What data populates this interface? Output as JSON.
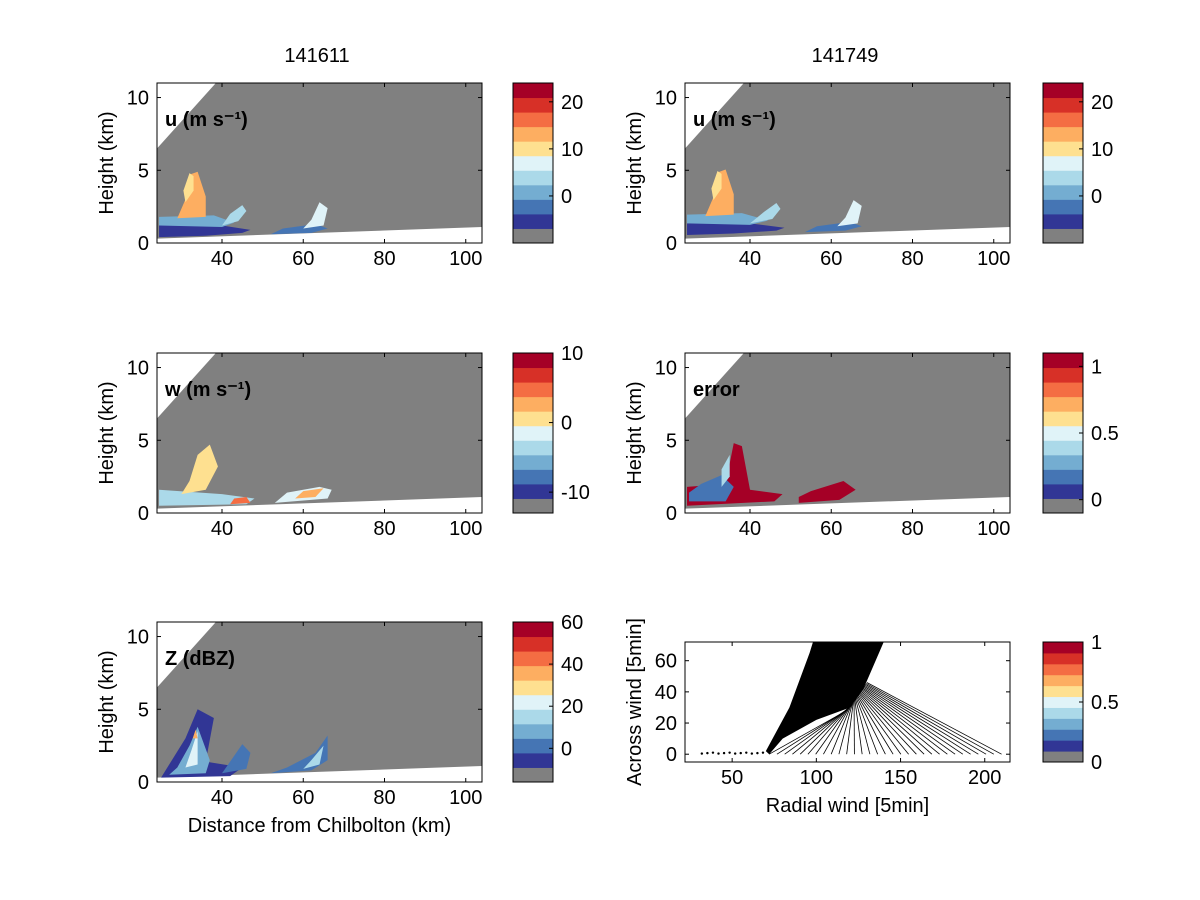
{
  "figure": {
    "column_titles": [
      "141611",
      "141749"
    ],
    "colors": {
      "ground_gray": "#808080",
      "palette": [
        "#808080",
        "#313695",
        "#4575b4",
        "#74add1",
        "#abd9e9",
        "#e0f3f8",
        "#fee090",
        "#fdae61",
        "#f46d43",
        "#d73027",
        "#a50026"
      ]
    }
  },
  "chart_data": [
    {
      "type": "heatmap",
      "title": "141611",
      "annotation": "u (m s⁻¹)",
      "xlabel": "",
      "ylabel": "Height (km)",
      "xlim": [
        24,
        104
      ],
      "ylim": [
        0,
        11
      ],
      "xticks": [
        "40",
        "60",
        "80",
        "100"
      ],
      "yticks": [
        "0",
        "5",
        "10"
      ],
      "colorbar": {
        "min": -10,
        "max": 24,
        "ticks": [
          "0",
          "10",
          "20"
        ]
      }
    },
    {
      "type": "heatmap",
      "title": "141749",
      "annotation": "u (m s⁻¹)",
      "xlabel": "",
      "ylabel": "Height (km)",
      "xlim": [
        24,
        104
      ],
      "ylim": [
        0,
        11
      ],
      "xticks": [
        "40",
        "60",
        "80",
        "100"
      ],
      "yticks": [
        "0",
        "5",
        "10"
      ],
      "colorbar": {
        "min": -10,
        "max": 24,
        "ticks": [
          "0",
          "10",
          "20"
        ]
      }
    },
    {
      "type": "heatmap",
      "title": "",
      "annotation": "w (m s⁻¹)",
      "xlabel": "",
      "ylabel": "Height (km)",
      "xlim": [
        24,
        104
      ],
      "ylim": [
        0,
        11
      ],
      "xticks": [
        "40",
        "60",
        "80",
        "100"
      ],
      "yticks": [
        "0",
        "5",
        "10"
      ],
      "colorbar": {
        "min": -13,
        "max": 10,
        "ticks": [
          "-10",
          "0",
          "10"
        ]
      }
    },
    {
      "type": "heatmap",
      "title": "",
      "annotation": "error",
      "xlabel": "",
      "ylabel": "Height (km)",
      "xlim": [
        24,
        104
      ],
      "ylim": [
        0,
        11
      ],
      "xticks": [
        "40",
        "60",
        "80",
        "100"
      ],
      "yticks": [
        "0",
        "5",
        "10"
      ],
      "colorbar": {
        "min": -0.1,
        "max": 1.1,
        "ticks": [
          "0",
          "0.5",
          "1"
        ]
      }
    },
    {
      "type": "heatmap",
      "title": "",
      "annotation": "Z (dBZ)",
      "xlabel": "Distance from Chilbolton (km)",
      "ylabel": "Height (km)",
      "xlim": [
        24,
        104
      ],
      "ylim": [
        0,
        11
      ],
      "xticks": [
        "40",
        "60",
        "80",
        "100"
      ],
      "yticks": [
        "0",
        "5",
        "10"
      ],
      "colorbar": {
        "min": -16,
        "max": 60,
        "ticks": [
          "0",
          "20",
          "40",
          "60"
        ]
      }
    },
    {
      "type": "scatter",
      "title": "",
      "annotation": "",
      "xlabel": "Radial wind [5min]",
      "ylabel": "Across wind [5min]",
      "xlim": [
        22,
        215
      ],
      "ylim": [
        -5,
        72
      ],
      "xticks": [
        "50",
        "100",
        "150",
        "200"
      ],
      "yticks": [
        "0",
        "20",
        "40",
        "60"
      ],
      "colorbar": {
        "min": 0,
        "max": 1,
        "ticks": [
          "0",
          "0.5",
          "1"
        ]
      }
    }
  ]
}
